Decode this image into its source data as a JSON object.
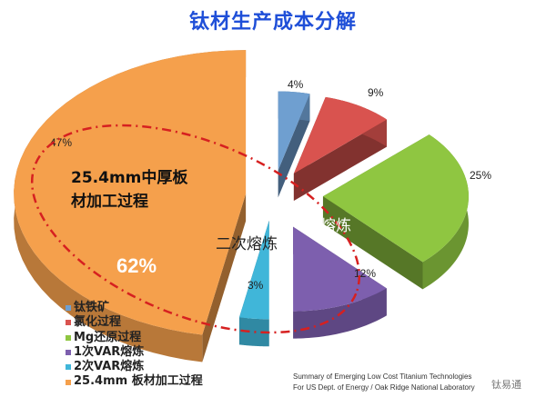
{
  "chart_data": {
    "type": "pie",
    "style": "3d-exploded",
    "title": "钛材生产成本分解",
    "slices": [
      {
        "label": "钛铁矿",
        "value": 4,
        "value_label": "4%",
        "color": "#6f9fd0"
      },
      {
        "label": "氯化过程",
        "value": 9,
        "value_label": "9%",
        "color": "#d9534f"
      },
      {
        "label": "Mg还原过程",
        "value": 25,
        "value_label": "25%",
        "color": "#8fc641"
      },
      {
        "label": "1次VAR熔炼",
        "value": 12,
        "value_label": "12%",
        "color": "#7d5fae"
      },
      {
        "label": "2次VAR熔炼",
        "value": 3,
        "value_label": "3%",
        "color": "#40b6d9"
      },
      {
        "label": "25.4mm 板材加工过程",
        "value": 47,
        "value_label": "47%",
        "color": "#f5a04c"
      }
    ],
    "legend_position": "bottom-left",
    "annotations": {
      "plate_processing": "25.4mm中厚板材加工过程",
      "total": "62%",
      "secondary_melting": "二次熔炼",
      "primary_melting": "一次熔炼"
    },
    "highlight_color": "#d62020"
  },
  "source": {
    "line1": "Summary of Emerging Low Cost Titanium Technologies",
    "line2": "For US Dept. of Energy / Oak Ridge National Laboratory"
  },
  "watermark": "钛易通"
}
